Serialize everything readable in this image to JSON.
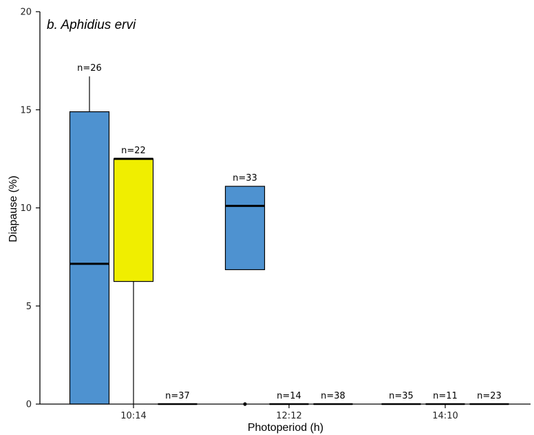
{
  "chart_data": {
    "type": "box",
    "title": "b. Aphidius ervi",
    "xlabel": "Photoperiod (h)",
    "ylabel": "Diapause (%)",
    "ylim": [
      0,
      20
    ],
    "yticks": [
      "0",
      "5",
      "10",
      "15",
      "20"
    ],
    "categories": [
      "10:14",
      "12:12",
      "14:10"
    ],
    "colors": {
      "blue": "#4e92d0",
      "yellow": "#f0ee00",
      "none": "#ffffff"
    },
    "boxes": [
      {
        "category": "10:14",
        "slot": 0,
        "color": "blue",
        "min": 0,
        "q1": 0,
        "median": 7.15,
        "q3": 14.9,
        "max": 16.7,
        "n_label": "n=26"
      },
      {
        "category": "10:14",
        "slot": 1,
        "color": "yellow",
        "min": 0,
        "q1": 6.25,
        "median": 12.5,
        "q3": 12.5,
        "max": 12.5,
        "n_label": "n=22"
      },
      {
        "category": "10:14",
        "slot": 2,
        "color": "none",
        "min": 0,
        "q1": 0,
        "median": 0,
        "q3": 0,
        "max": 0,
        "n_label": "n=37"
      },
      {
        "category": "12:12",
        "slot": 0,
        "color": "blue",
        "min": 6.85,
        "q1": 6.85,
        "median": 10.1,
        "q3": 11.1,
        "max": 11.1,
        "n_label": "n=33",
        "outliers": [
          0
        ]
      },
      {
        "category": "12:12",
        "slot": 1,
        "color": "none",
        "min": 0,
        "q1": 0,
        "median": 0,
        "q3": 0,
        "max": 0,
        "n_label": "n=14"
      },
      {
        "category": "12:12",
        "slot": 2,
        "color": "none",
        "min": 0,
        "q1": 0,
        "median": 0,
        "q3": 0,
        "max": 0,
        "n_label": "n=38"
      },
      {
        "category": "14:10",
        "slot": 0,
        "color": "none",
        "min": 0,
        "q1": 0,
        "median": 0,
        "q3": 0,
        "max": 0,
        "n_label": "n=35"
      },
      {
        "category": "14:10",
        "slot": 1,
        "color": "none",
        "min": 0,
        "q1": 0,
        "median": 0,
        "q3": 0,
        "max": 0,
        "n_label": "n=11"
      },
      {
        "category": "14:10",
        "slot": 2,
        "color": "none",
        "min": 0,
        "q1": 0,
        "median": 0,
        "q3": 0,
        "max": 0,
        "n_label": "n=23"
      }
    ],
    "grid": false,
    "legend": "none"
  }
}
